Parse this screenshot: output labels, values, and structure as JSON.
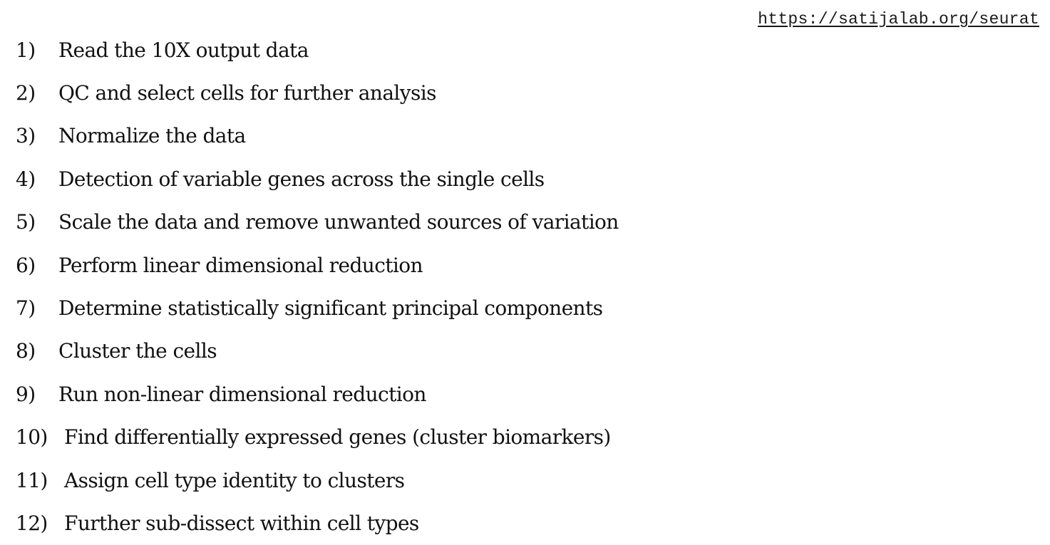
{
  "source_link": "https://satijalab.org/seurat",
  "steps": [
    {
      "number": "1)",
      "text": "Read the 10X output data"
    },
    {
      "number": "2)",
      "text": "QC and select cells for further analysis"
    },
    {
      "number": "3)",
      "text": "Normalize the data"
    },
    {
      "number": "4)",
      "text": "Detection of variable genes across the single cells"
    },
    {
      "number": "5)",
      "text": "Scale the data and remove unwanted sources of variation"
    },
    {
      "number": "6)",
      "text": "Perform linear dimensional reduction"
    },
    {
      "number": "7)",
      "text": "Determine statistically significant principal components"
    },
    {
      "number": "8)",
      "text": "Cluster the cells"
    },
    {
      "number": "9)",
      "text": "Run non-linear dimensional reduction"
    },
    {
      "number": "10)",
      "text": "Find differentially expressed genes (cluster biomarkers)"
    },
    {
      "number": "11)",
      "text": "Assign cell type identity to clusters"
    },
    {
      "number": "12)",
      "text": "Further sub-dissect within cell types"
    }
  ]
}
